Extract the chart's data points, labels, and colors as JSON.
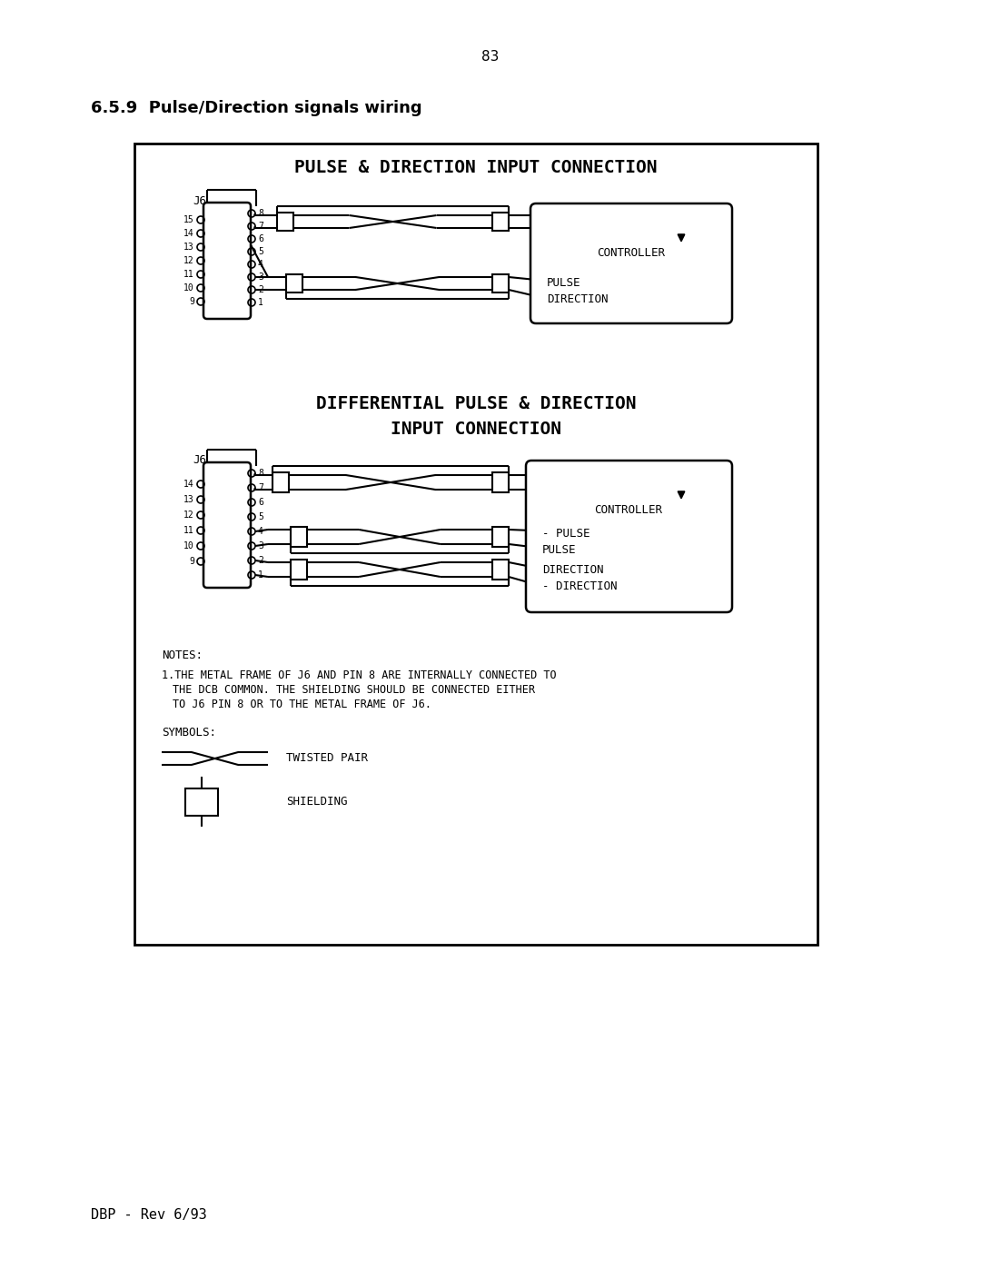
{
  "page_number": "83",
  "section_title": "6.5.9  Pulse/Direction signals wiring",
  "diagram_title1": "PULSE & DIRECTION INPUT CONNECTION",
  "diagram_title2_line1": "DIFFERENTIAL PULSE & DIRECTION",
  "diagram_title2_line2": "INPUT CONNECTION",
  "bg_color": "#ffffff",
  "footer": "DBP – Rev 6/93",
  "twisted_pair_label": "TWISTED PAIR",
  "shielding_label": "SHIELDING"
}
